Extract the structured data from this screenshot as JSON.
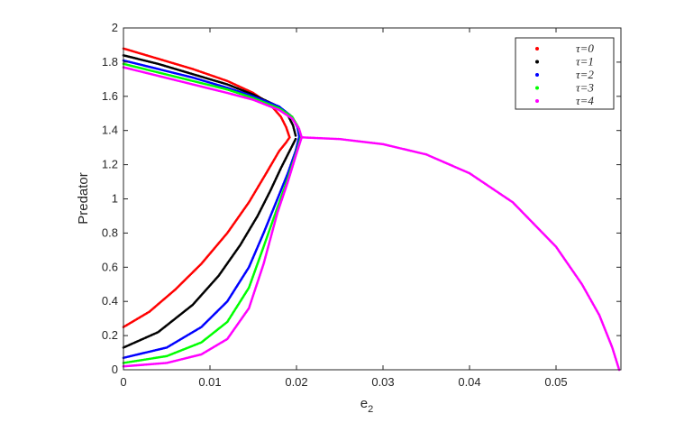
{
  "chart_data": {
    "type": "scatter",
    "xlabel": "e",
    "xlabel_sub": "2",
    "ylabel": "Predator",
    "xlim": [
      0,
      0.0575
    ],
    "ylim": [
      0,
      2
    ],
    "xticks": [
      "0",
      "0.01",
      "0.02",
      "0.03",
      "0.04",
      "0.05"
    ],
    "yticks": [
      "0",
      "0.2",
      "0.4",
      "0.6",
      "0.8",
      "1",
      "1.2",
      "1.4",
      "1.6",
      "1.8",
      "2"
    ],
    "legend_position": "top-right",
    "grid": false,
    "marker": "dot",
    "series": [
      {
        "name": "τ=0",
        "color": "#ff0000",
        "upper_branch": [
          [
            0,
            1.88
          ],
          [
            0.004,
            1.82
          ],
          [
            0.008,
            1.76
          ],
          [
            0.012,
            1.69
          ],
          [
            0.015,
            1.62
          ],
          [
            0.017,
            1.55
          ],
          [
            0.0182,
            1.48
          ],
          [
            0.0188,
            1.42
          ],
          [
            0.0192,
            1.36
          ]
        ],
        "lower_branch": [
          [
            0,
            0.25
          ],
          [
            0.003,
            0.34
          ],
          [
            0.006,
            0.47
          ],
          [
            0.009,
            0.62
          ],
          [
            0.012,
            0.8
          ],
          [
            0.0145,
            0.98
          ],
          [
            0.0165,
            1.15
          ],
          [
            0.018,
            1.28
          ],
          [
            0.0188,
            1.33
          ],
          [
            0.0192,
            1.36
          ]
        ]
      },
      {
        "name": "τ=1",
        "color": "#000000",
        "upper_branch": [
          [
            0,
            1.84
          ],
          [
            0.004,
            1.79
          ],
          [
            0.008,
            1.73
          ],
          [
            0.012,
            1.67
          ],
          [
            0.015,
            1.61
          ],
          [
            0.0175,
            1.55
          ],
          [
            0.019,
            1.49
          ],
          [
            0.0196,
            1.43
          ],
          [
            0.0199,
            1.37
          ]
        ],
        "lower_branch": [
          [
            0,
            0.13
          ],
          [
            0.004,
            0.22
          ],
          [
            0.008,
            0.38
          ],
          [
            0.011,
            0.55
          ],
          [
            0.0135,
            0.73
          ],
          [
            0.0155,
            0.9
          ],
          [
            0.017,
            1.05
          ],
          [
            0.0182,
            1.18
          ],
          [
            0.0192,
            1.28
          ],
          [
            0.0199,
            1.35
          ]
        ]
      },
      {
        "name": "τ=2",
        "color": "#0000ff",
        "upper_branch": [
          [
            0,
            1.81
          ],
          [
            0.004,
            1.76
          ],
          [
            0.008,
            1.71
          ],
          [
            0.012,
            1.65
          ],
          [
            0.015,
            1.6
          ],
          [
            0.018,
            1.54
          ],
          [
            0.0195,
            1.48
          ],
          [
            0.0201,
            1.42
          ],
          [
            0.0203,
            1.37
          ]
        ],
        "lower_branch": [
          [
            0,
            0.07
          ],
          [
            0.005,
            0.13
          ],
          [
            0.009,
            0.25
          ],
          [
            0.012,
            0.4
          ],
          [
            0.0145,
            0.6
          ],
          [
            0.0162,
            0.8
          ],
          [
            0.0178,
            1.0
          ],
          [
            0.019,
            1.15
          ],
          [
            0.0199,
            1.28
          ],
          [
            0.0203,
            1.36
          ]
        ]
      },
      {
        "name": "τ=3",
        "color": "#00ff00",
        "upper_branch": [
          [
            0,
            1.79
          ],
          [
            0.004,
            1.74
          ],
          [
            0.008,
            1.69
          ],
          [
            0.012,
            1.64
          ],
          [
            0.015,
            1.59
          ],
          [
            0.018,
            1.53
          ],
          [
            0.0195,
            1.48
          ],
          [
            0.0202,
            1.42
          ],
          [
            0.0205,
            1.37
          ]
        ],
        "lower_branch": [
          [
            0,
            0.04
          ],
          [
            0.005,
            0.08
          ],
          [
            0.009,
            0.16
          ],
          [
            0.012,
            0.28
          ],
          [
            0.0145,
            0.48
          ],
          [
            0.0162,
            0.72
          ],
          [
            0.0178,
            0.95
          ],
          [
            0.019,
            1.12
          ],
          [
            0.0199,
            1.26
          ],
          [
            0.0205,
            1.36
          ]
        ]
      },
      {
        "name": "τ=4",
        "color": "#ff00ff",
        "upper_branch": [
          [
            0,
            1.77
          ],
          [
            0.004,
            1.72
          ],
          [
            0.008,
            1.67
          ],
          [
            0.012,
            1.62
          ],
          [
            0.015,
            1.58
          ],
          [
            0.018,
            1.52
          ],
          [
            0.0195,
            1.47
          ],
          [
            0.0203,
            1.41
          ],
          [
            0.0206,
            1.36
          ]
        ],
        "lower_branch": [
          [
            0,
            0.02
          ],
          [
            0.005,
            0.04
          ],
          [
            0.009,
            0.09
          ],
          [
            0.012,
            0.18
          ],
          [
            0.0145,
            0.36
          ],
          [
            0.0162,
            0.62
          ],
          [
            0.0178,
            0.92
          ],
          [
            0.019,
            1.1
          ],
          [
            0.0199,
            1.25
          ],
          [
            0.0206,
            1.36
          ]
        ]
      }
    ],
    "interior_branch": {
      "color": "#ff00ff",
      "points": [
        [
          0.0206,
          1.36
        ],
        [
          0.025,
          1.35
        ],
        [
          0.03,
          1.32
        ],
        [
          0.035,
          1.26
        ],
        [
          0.04,
          1.15
        ],
        [
          0.045,
          0.98
        ],
        [
          0.05,
          0.72
        ],
        [
          0.053,
          0.5
        ],
        [
          0.055,
          0.32
        ],
        [
          0.0565,
          0.13
        ],
        [
          0.0573,
          0.0
        ]
      ]
    }
  }
}
